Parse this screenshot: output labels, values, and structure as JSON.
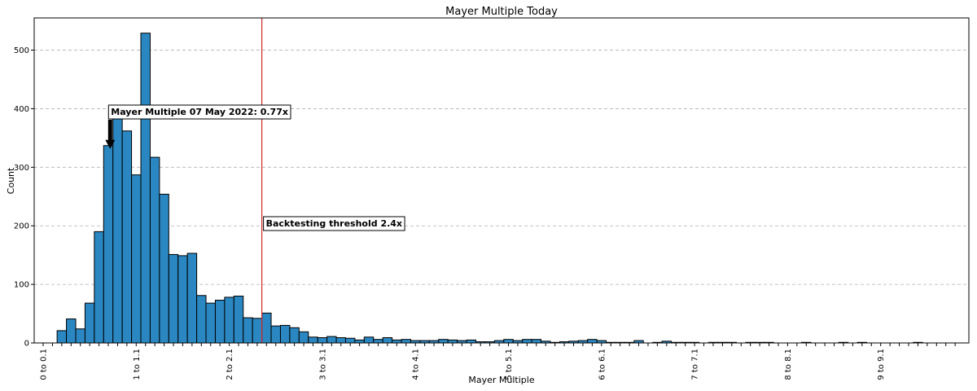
{
  "chart_data": {
    "type": "bar",
    "title": "Mayer Multiple Today",
    "xlabel": "Mayer Multiple",
    "ylabel": "Count",
    "ylim": [
      0,
      555
    ],
    "yticks": [
      0,
      100,
      200,
      300,
      400,
      500
    ],
    "grid": "horizontal dashed",
    "bar_color": "#2b87c1",
    "bar_edge_color": "#000000",
    "threshold_line_color": "#d62728",
    "bin_width": 0.1,
    "x_tick_labels": [
      "0 to 0.1",
      "1 to 1.1",
      "2 to 2.1",
      "3 to 3.1",
      "4 to 4.1",
      "5 to 5.1",
      "6 to 6.1",
      "7 to 7.1",
      "8 to 8.1",
      "9 to 9.1"
    ],
    "x_tick_bins": [
      0,
      10,
      20,
      30,
      40,
      50,
      60,
      70,
      80,
      90
    ],
    "total_bins": 99,
    "counts": [
      0,
      0,
      21,
      41,
      24,
      68,
      190,
      337,
      405,
      362,
      287,
      529,
      317,
      254,
      151,
      149,
      153,
      81,
      68,
      73,
      78,
      80,
      43,
      42,
      51,
      29,
      30,
      26,
      19,
      10,
      9,
      11,
      9,
      8,
      5,
      10,
      6,
      9,
      5,
      6,
      4,
      4,
      4,
      6,
      5,
      4,
      5,
      2,
      2,
      4,
      6,
      4,
      6,
      6,
      3,
      1,
      2,
      3,
      4,
      6,
      4,
      1,
      1,
      1,
      4,
      0,
      1,
      3,
      1,
      1,
      1,
      0,
      1,
      1,
      1,
      0,
      1,
      1,
      1,
      0,
      0,
      0,
      1,
      0,
      0,
      0,
      1,
      0,
      1,
      0,
      0,
      0,
      0,
      0,
      1,
      0,
      0,
      0,
      0
    ],
    "annotations": [
      {
        "text": "Mayer Multiple 07 May 2022: 0.77x",
        "x": 0.77
      },
      {
        "text": "Backtesting threshold 2.4x",
        "x": 2.4
      }
    ]
  }
}
